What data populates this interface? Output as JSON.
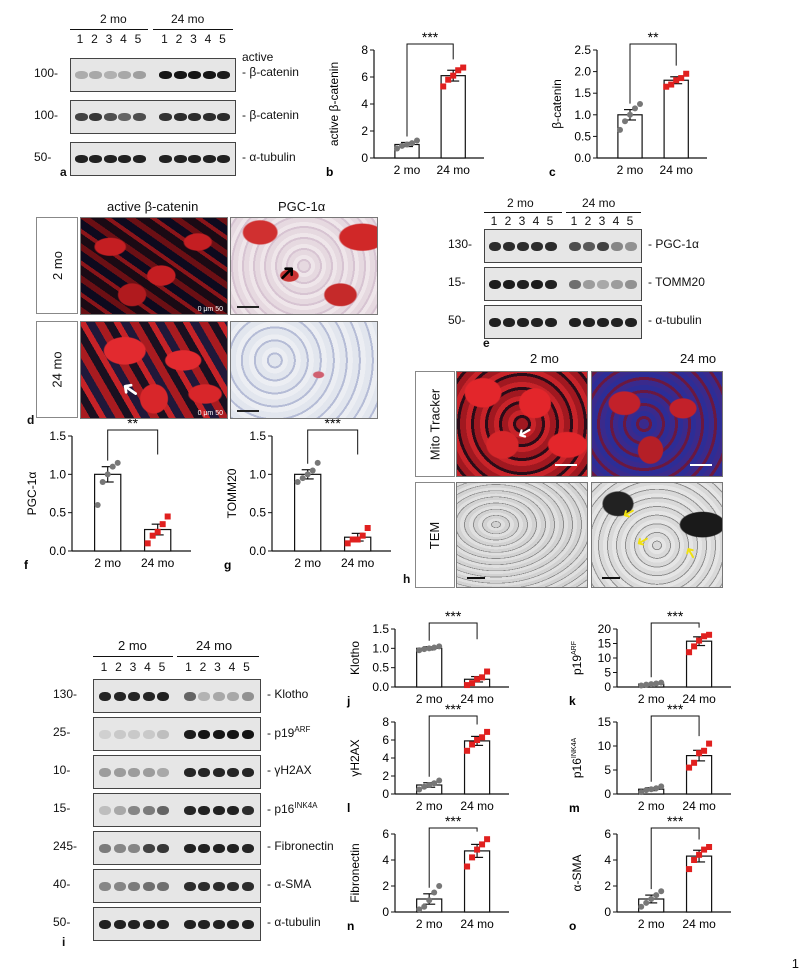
{
  "colors": {
    "ink": "#111111",
    "dot_young": "#777777",
    "dot_old": "#e0201f",
    "fluor_red": "#d8262a",
    "fluor_blue": "#2a3aa8",
    "ihc_bg": "#ece6ea"
  },
  "page_number": "1",
  "blot_a": {
    "panel": "a",
    "group1": "2 mo",
    "group2": "24 mo",
    "lanes": [
      "1",
      "2",
      "3",
      "4",
      "5",
      "1",
      "2",
      "3",
      "4",
      "5"
    ],
    "rows": [
      {
        "name": "active\nβ-catenin",
        "label1": "active",
        "label2": "β-catenin",
        "marker": "100-",
        "intensity": [
          0.28,
          0.3,
          0.26,
          0.3,
          0.34,
          0.95,
          0.95,
          0.95,
          0.95,
          0.92
        ]
      },
      {
        "name": "β-catenin",
        "label1": "β-catenin",
        "label2": "",
        "marker": "100-",
        "intensity": [
          0.75,
          0.8,
          0.7,
          0.6,
          0.7,
          0.82,
          0.85,
          0.85,
          0.85,
          0.85
        ]
      },
      {
        "name": "α-tubulin",
        "label1": "α-tubulin",
        "label2": "",
        "marker": "50-",
        "intensity": [
          0.9,
          0.9,
          0.9,
          0.9,
          0.9,
          0.9,
          0.9,
          0.9,
          0.9,
          0.9
        ]
      }
    ]
  },
  "blot_e": {
    "panel": "e",
    "group1": "2 mo",
    "group2": "24 mo",
    "lanes": [
      "1",
      "2",
      "3",
      "4",
      "5",
      "1",
      "2",
      "3",
      "4",
      "5"
    ],
    "rows": [
      {
        "label": "PGC-1α",
        "marker": "130-",
        "intensity": [
          0.85,
          0.85,
          0.85,
          0.85,
          0.85,
          0.7,
          0.65,
          0.75,
          0.45,
          0.4
        ]
      },
      {
        "label": "TOMM20",
        "marker": "15-",
        "intensity": [
          0.92,
          0.92,
          0.9,
          0.92,
          0.9,
          0.55,
          0.35,
          0.3,
          0.35,
          0.4
        ]
      },
      {
        "label": "α-tubulin",
        "marker": "50-",
        "intensity": [
          0.9,
          0.9,
          0.9,
          0.9,
          0.9,
          0.9,
          0.9,
          0.9,
          0.9,
          0.9
        ]
      }
    ]
  },
  "blot_i": {
    "panel": "i",
    "group1": "2 mo",
    "group2": "24 mo",
    "lanes": [
      "1",
      "2",
      "3",
      "4",
      "5",
      "1",
      "2",
      "3",
      "4",
      "5"
    ],
    "rows": [
      {
        "label": "Klotho",
        "sup": "",
        "marker": "130-",
        "intensity": [
          0.88,
          0.88,
          0.88,
          0.88,
          0.9,
          0.6,
          0.25,
          0.3,
          0.3,
          0.4
        ]
      },
      {
        "label": "p19",
        "sup": "ARF",
        "marker": "25-",
        "intensity": [
          0.12,
          0.15,
          0.15,
          0.15,
          0.2,
          0.92,
          0.95,
          0.95,
          0.95,
          0.95
        ]
      },
      {
        "label": "γH2AX",
        "sup": "",
        "marker": "10-",
        "intensity": [
          0.35,
          0.35,
          0.35,
          0.35,
          0.3,
          0.88,
          0.88,
          0.88,
          0.88,
          0.88
        ]
      },
      {
        "label": "p16",
        "sup": "INK4A",
        "marker": "15-",
        "intensity": [
          0.2,
          0.3,
          0.45,
          0.5,
          0.6,
          0.88,
          0.9,
          0.9,
          0.9,
          0.85
        ]
      },
      {
        "label": "Fibronectin",
        "sup": "",
        "marker": "245-",
        "intensity": [
          0.5,
          0.45,
          0.45,
          0.75,
          0.8,
          0.9,
          0.9,
          0.9,
          0.9,
          0.88
        ]
      },
      {
        "label": "α-SMA",
        "sup": "",
        "marker": "40-",
        "intensity": [
          0.45,
          0.45,
          0.5,
          0.55,
          0.55,
          0.85,
          0.85,
          0.85,
          0.85,
          0.85
        ]
      },
      {
        "label": "α-tubulin",
        "sup": "",
        "marker": "50-",
        "intensity": [
          0.9,
          0.9,
          0.9,
          0.9,
          0.9,
          0.9,
          0.9,
          0.9,
          0.9,
          0.9
        ]
      }
    ]
  },
  "micro_d": {
    "panel": "d",
    "col1": "active  β-catenin",
    "col2": "PGC-1α",
    "row1": "2 mo",
    "row2": "24 mo",
    "scale_text": "0    μm    50"
  },
  "micro_h": {
    "panel": "h",
    "col1": "2 mo",
    "col2": "24 mo",
    "row1": "Mito Tracker",
    "row2": "TEM"
  },
  "chart_data": [
    {
      "panel": "b",
      "type": "bar",
      "categories": [
        "2 mo",
        "24 mo"
      ],
      "ylabel": "active β-catenin",
      "ylim": [
        0,
        8
      ],
      "yticks": [
        "0",
        "2",
        "4",
        "6",
        "8"
      ],
      "tick_values": [
        0,
        2,
        4,
        6,
        8
      ],
      "values": [
        1.0,
        6.1
      ],
      "errors": [
        0.15,
        0.4
      ],
      "points": [
        [
          0.7,
          0.9,
          1.0,
          1.1,
          1.3
        ],
        [
          5.3,
          5.8,
          6.1,
          6.5,
          6.7
        ]
      ],
      "significance": "***"
    },
    {
      "panel": "c",
      "type": "bar",
      "categories": [
        "2 mo",
        "24 mo"
      ],
      "ylabel": "β-catenin",
      "ylim": [
        0,
        2.5
      ],
      "yticks": [
        "0.0",
        "0.5",
        "1.0",
        "1.5",
        "2.0",
        "2.5"
      ],
      "tick_values": [
        0,
        0.5,
        1,
        1.5,
        2,
        2.5
      ],
      "values": [
        1.0,
        1.8
      ],
      "errors": [
        0.12,
        0.08
      ],
      "points": [
        [
          0.65,
          0.85,
          1.0,
          1.15,
          1.25
        ],
        [
          1.65,
          1.7,
          1.8,
          1.85,
          1.95
        ]
      ],
      "significance": "**"
    },
    {
      "panel": "f",
      "type": "bar",
      "categories": [
        "2 mo",
        "24 mo"
      ],
      "ylabel": "PGC-1α",
      "ylim": [
        0,
        1.5
      ],
      "yticks": [
        "0.0",
        "0.5",
        "1.0",
        "1.5"
      ],
      "tick_values": [
        0,
        0.5,
        1,
        1.5
      ],
      "values": [
        1.0,
        0.28
      ],
      "errors": [
        0.1,
        0.07
      ],
      "points": [
        [
          0.6,
          0.9,
          1.0,
          1.1,
          1.15
        ],
        [
          0.1,
          0.2,
          0.25,
          0.35,
          0.45
        ]
      ],
      "significance": "**"
    },
    {
      "panel": "g",
      "type": "bar",
      "categories": [
        "2 mo",
        "24 mo"
      ],
      "ylabel": "TOMM20",
      "ylim": [
        0,
        1.5
      ],
      "yticks": [
        "0.0",
        "0.5",
        "1.0",
        "1.5"
      ],
      "tick_values": [
        0,
        0.5,
        1,
        1.5
      ],
      "values": [
        1.0,
        0.18
      ],
      "errors": [
        0.06,
        0.05
      ],
      "points": [
        [
          0.9,
          0.95,
          1.0,
          1.05,
          1.15
        ],
        [
          0.1,
          0.15,
          0.15,
          0.2,
          0.3
        ]
      ],
      "significance": "***"
    },
    {
      "panel": "j",
      "type": "bar",
      "categories": [
        "2 mo",
        "24 mo"
      ],
      "ylabel": "Klotho",
      "ylim": [
        0,
        1.5
      ],
      "yticks": [
        "0.0",
        "0.5",
        "1.0",
        "1.5"
      ],
      "tick_values": [
        0,
        0.5,
        1,
        1.5
      ],
      "values": [
        1.0,
        0.2
      ],
      "errors": [
        0.04,
        0.07
      ],
      "points": [
        [
          0.95,
          0.98,
          1.0,
          1.02,
          1.05
        ],
        [
          0.05,
          0.1,
          0.2,
          0.25,
          0.4
        ]
      ],
      "significance": "***"
    },
    {
      "panel": "k",
      "type": "bar",
      "categories": [
        "2 mo",
        "24 mo"
      ],
      "ylabel": "p19",
      "ylabel_sup": "ARF",
      "ylim": [
        0,
        20
      ],
      "yticks": [
        "0",
        "5",
        "10",
        "15",
        "20"
      ],
      "tick_values": [
        0,
        5,
        10,
        15,
        20
      ],
      "values": [
        1.0,
        15.8
      ],
      "errors": [
        0.3,
        1.5
      ],
      "points": [
        [
          0.5,
          0.8,
          1.0,
          1.2,
          1.5
        ],
        [
          12,
          14,
          16,
          17.5,
          18
        ]
      ],
      "significance": "***"
    },
    {
      "panel": "l",
      "type": "bar",
      "categories": [
        "2 mo",
        "24 mo"
      ],
      "ylabel": "γH2AX",
      "ylim": [
        0,
        8
      ],
      "yticks": [
        "0",
        "2",
        "4",
        "6",
        "8"
      ],
      "tick_values": [
        0,
        2,
        4,
        6,
        8
      ],
      "values": [
        1.0,
        5.9
      ],
      "errors": [
        0.25,
        0.5
      ],
      "points": [
        [
          0.5,
          0.8,
          1.0,
          1.2,
          1.5
        ],
        [
          4.8,
          5.5,
          6.0,
          6.3,
          6.9
        ]
      ],
      "significance": "***"
    },
    {
      "panel": "m",
      "type": "bar",
      "categories": [
        "2 mo",
        "24 mo"
      ],
      "ylabel": "p16",
      "ylabel_sup": "INK4A",
      "ylim": [
        0,
        15
      ],
      "yticks": [
        "0",
        "5",
        "10",
        "15"
      ],
      "tick_values": [
        0,
        5,
        10,
        15
      ],
      "values": [
        1.0,
        8.0
      ],
      "errors": [
        0.3,
        1.1
      ],
      "points": [
        [
          0.4,
          0.8,
          1.0,
          1.2,
          1.6
        ],
        [
          5.5,
          6.5,
          8.5,
          9,
          10.5
        ]
      ],
      "significance": "***"
    },
    {
      "panel": "n",
      "type": "bar",
      "categories": [
        "2 mo",
        "24 mo"
      ],
      "ylabel": "Fibronectin",
      "ylim": [
        0,
        6
      ],
      "yticks": [
        "0",
        "2",
        "4",
        "6"
      ],
      "tick_values": [
        0,
        2,
        4,
        6
      ],
      "values": [
        1.0,
        4.7
      ],
      "errors": [
        0.4,
        0.5
      ],
      "points": [
        [
          0.2,
          0.4,
          0.9,
          1.5,
          2.0
        ],
        [
          3.5,
          4.2,
          4.8,
          5.2,
          5.6
        ]
      ],
      "significance": "***"
    },
    {
      "panel": "o",
      "type": "bar",
      "categories": [
        "2 mo",
        "24 mo"
      ],
      "ylabel": "α-SMA",
      "ylim": [
        0,
        6
      ],
      "yticks": [
        "0",
        "2",
        "4",
        "6"
      ],
      "tick_values": [
        0,
        2,
        4,
        6
      ],
      "values": [
        1.0,
        4.3
      ],
      "errors": [
        0.3,
        0.45
      ],
      "points": [
        [
          0.4,
          0.7,
          1.0,
          1.3,
          1.6
        ],
        [
          3.3,
          4.0,
          4.4,
          4.8,
          5.0
        ]
      ],
      "significance": "***"
    }
  ]
}
